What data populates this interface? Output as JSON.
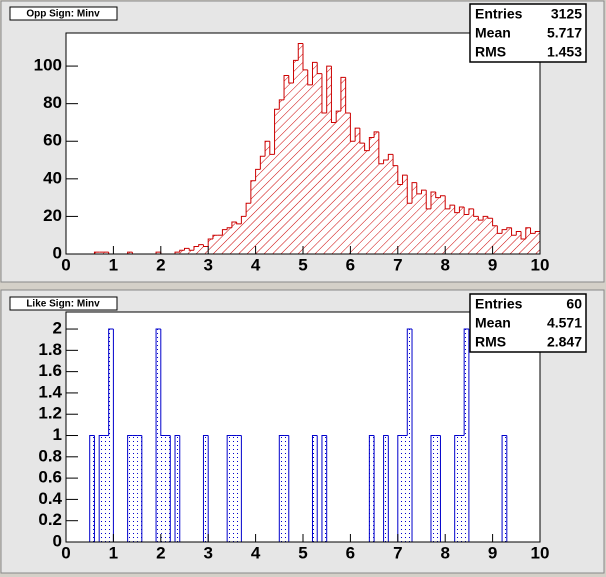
{
  "chart_data": [
    {
      "type": "histogram",
      "title": "Opp Sign: Minv",
      "color": "#cc0000",
      "fill_pattern": "hatch",
      "bins": [
        0,
        0.1,
        0.2,
        0.3,
        0.4,
        0.5,
        0.6,
        0.7,
        0.8,
        0.9,
        1,
        1.1,
        1.2,
        1.3,
        1.4,
        1.5,
        1.6,
        1.7,
        1.8,
        1.9,
        2,
        2.1,
        2.2,
        2.3,
        2.4,
        2.5,
        2.6,
        2.7,
        2.8,
        2.9,
        3,
        3.1,
        3.2,
        3.3,
        3.4,
        3.5,
        3.6,
        3.7,
        3.8,
        3.9,
        4,
        4.1,
        4.2,
        4.3,
        4.4,
        4.5,
        4.6,
        4.7,
        4.8,
        4.9,
        5,
        5.1,
        5.2,
        5.3,
        5.4,
        5.5,
        5.6,
        5.7,
        5.8,
        5.9,
        6,
        6.1,
        6.2,
        6.3,
        6.4,
        6.5,
        6.6,
        6.7,
        6.8,
        6.9,
        7,
        7.1,
        7.2,
        7.3,
        7.4,
        7.5,
        7.6,
        7.7,
        7.8,
        7.9,
        8,
        8.1,
        8.2,
        8.3,
        8.4,
        8.5,
        8.6,
        8.7,
        8.8,
        8.9,
        9,
        9.1,
        9.2,
        9.3,
        9.4,
        9.5,
        9.6,
        9.7,
        9.8,
        9.9,
        10
      ],
      "values": [
        0,
        0,
        0,
        0,
        0,
        0,
        1,
        1,
        1,
        0,
        0,
        0,
        0,
        1,
        0,
        0,
        0,
        0,
        0,
        1,
        0,
        0,
        0,
        1,
        2,
        3,
        2,
        4,
        5,
        4,
        8,
        10,
        10,
        13,
        14,
        17,
        16,
        20,
        27,
        39,
        45,
        52,
        60,
        53,
        77,
        82,
        95,
        91,
        103,
        112,
        98,
        90,
        102,
        96,
        75,
        100,
        70,
        76,
        94,
        75,
        60,
        67,
        59,
        55,
        62,
        65,
        48,
        50,
        53,
        47,
        37,
        42,
        27,
        38,
        32,
        34,
        24,
        33,
        30,
        31,
        24,
        26,
        22,
        25,
        21,
        24,
        20,
        18,
        20,
        19,
        15,
        11,
        13,
        14,
        10,
        12,
        8,
        14,
        11,
        12
      ],
      "xlim": [
        0,
        10
      ],
      "xticks": [
        0,
        1,
        2,
        3,
        4,
        5,
        6,
        7,
        8,
        9,
        10
      ],
      "ylim": [
        0,
        117.6
      ],
      "yticks": [
        0,
        20,
        40,
        60,
        80,
        100
      ],
      "stats": [
        {
          "label": "Entries",
          "value": 3125
        },
        {
          "label": "Mean",
          "value": 5.717
        },
        {
          "label": "RMS",
          "value": 1.453
        }
      ]
    },
    {
      "type": "histogram",
      "title": "Like Sign: Minv",
      "color": "#0000cc",
      "fill_pattern": "dots",
      "bins": [
        0,
        0.1,
        0.2,
        0.3,
        0.4,
        0.5,
        0.6,
        0.7,
        0.8,
        0.9,
        1,
        1.1,
        1.2,
        1.3,
        1.4,
        1.5,
        1.6,
        1.7,
        1.8,
        1.9,
        2,
        2.1,
        2.2,
        2.3,
        2.4,
        2.5,
        2.6,
        2.7,
        2.8,
        2.9,
        3,
        3.1,
        3.2,
        3.3,
        3.4,
        3.5,
        3.6,
        3.7,
        3.8,
        3.9,
        4,
        4.1,
        4.2,
        4.3,
        4.4,
        4.5,
        4.6,
        4.7,
        4.8,
        4.9,
        5,
        5.1,
        5.2,
        5.3,
        5.4,
        5.5,
        5.6,
        5.7,
        5.8,
        5.9,
        6,
        6.1,
        6.2,
        6.3,
        6.4,
        6.5,
        6.6,
        6.7,
        6.8,
        6.9,
        7,
        7.1,
        7.2,
        7.3,
        7.4,
        7.5,
        7.6,
        7.7,
        7.8,
        7.9,
        8,
        8.1,
        8.2,
        8.3,
        8.4,
        8.5,
        8.6,
        8.7,
        8.8,
        8.9,
        9,
        9.1,
        9.2,
        9.3,
        9.4,
        9.5,
        9.6,
        9.7,
        9.8,
        9.9,
        10
      ],
      "values": [
        0,
        0,
        0,
        0,
        0,
        1,
        0,
        1,
        1,
        2,
        0,
        0,
        0,
        1,
        1,
        1,
        0,
        0,
        0,
        2,
        1,
        1,
        0,
        1,
        0,
        0,
        0,
        0,
        0,
        1,
        0,
        0,
        0,
        0,
        1,
        1,
        1,
        0,
        0,
        0,
        0,
        0,
        0,
        0,
        0,
        1,
        1,
        0,
        0,
        0,
        0,
        0,
        1,
        0,
        1,
        0,
        0,
        0,
        0,
        0,
        0,
        0,
        0,
        0,
        1,
        0,
        0,
        1,
        0,
        0,
        1,
        1,
        2,
        0,
        0,
        0,
        0,
        1,
        1,
        0,
        0,
        0,
        1,
        1,
        2,
        0,
        0,
        0,
        0,
        0,
        0,
        0,
        1,
        0,
        0,
        0,
        0,
        0,
        0,
        0
      ],
      "xlim": [
        0,
        10
      ],
      "xticks": [
        0,
        1,
        2,
        3,
        4,
        5,
        6,
        7,
        8,
        9,
        10
      ],
      "ylim": [
        0,
        2.16
      ],
      "yticks": [
        0,
        0.2,
        0.4,
        0.6,
        0.8,
        1,
        1.2,
        1.4,
        1.6,
        1.8,
        2
      ],
      "stats": [
        {
          "label": "Entries",
          "value": 60
        },
        {
          "label": "Mean",
          "value": 4.571
        },
        {
          "label": "RMS",
          "value": 2.847
        }
      ]
    }
  ]
}
